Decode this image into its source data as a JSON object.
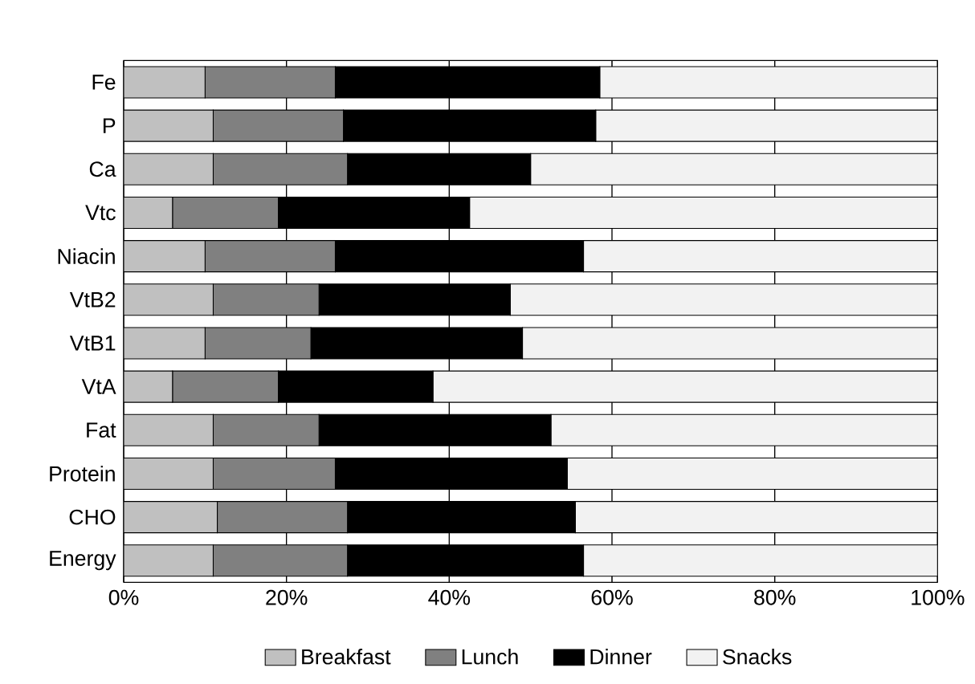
{
  "chart_data": {
    "type": "bar",
    "orientation": "horizontal",
    "stacked": true,
    "categories": [
      "Fe",
      "P",
      "Ca",
      "Vtc",
      "Niacin",
      "VtB2",
      "VtB1",
      "VtA",
      "Fat",
      "Protein",
      "CHO",
      "Energy"
    ],
    "series": [
      {
        "name": "Breakfast",
        "color": "#c0c0c0",
        "values": [
          10,
          11,
          11,
          6,
          10,
          11,
          10,
          6,
          11,
          11,
          11.5,
          11
        ]
      },
      {
        "name": "Lunch",
        "color": "#808080",
        "values": [
          16,
          16,
          16.5,
          13,
          16,
          13,
          13,
          13,
          13,
          15,
          16,
          16.5
        ]
      },
      {
        "name": "Dinner",
        "color": "#000000",
        "values": [
          32.5,
          31,
          22.5,
          23.5,
          30.5,
          23.5,
          26,
          19,
          28.5,
          28.5,
          28,
          29
        ]
      },
      {
        "name": "Snacks",
        "color": "#f2f2f2",
        "values": [
          41.5,
          42,
          50,
          57.5,
          43.5,
          52.5,
          51,
          62,
          47.5,
          45.5,
          44.5,
          43.5
        ]
      }
    ],
    "xlim": [
      0,
      100
    ],
    "xticks": [
      {
        "value": 0,
        "label": "0%"
      },
      {
        "value": 20,
        "label": "20%"
      },
      {
        "value": 40,
        "label": "40%"
      },
      {
        "value": 60,
        "label": "60%"
      },
      {
        "value": 80,
        "label": "80%"
      },
      {
        "value": 100,
        "label": "100%"
      }
    ],
    "grid": "x",
    "legend": "bottom"
  }
}
